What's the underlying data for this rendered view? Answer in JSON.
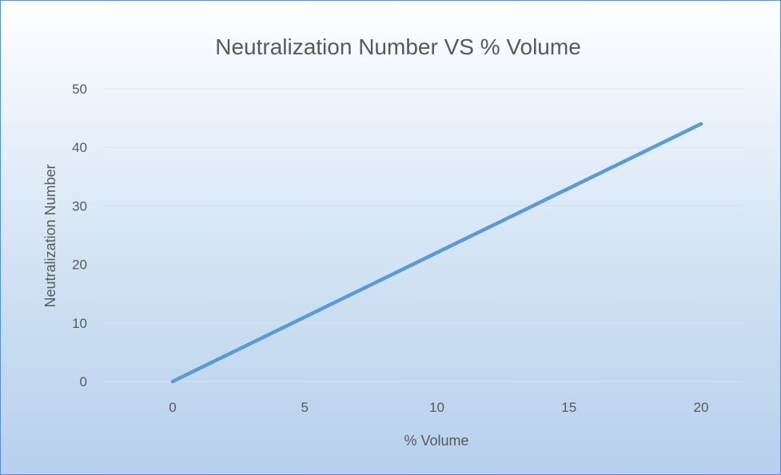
{
  "chart_data": {
    "type": "line",
    "title": "Neutralization Number VS % Volume",
    "xlabel": "% Volume",
    "ylabel": "Neutralization Number",
    "x": [
      0,
      5,
      10,
      15,
      20
    ],
    "series": [
      {
        "values": [
          0,
          11,
          22,
          33,
          44
        ],
        "color": "#5b9bd5"
      }
    ],
    "xlim": [
      0,
      20
    ],
    "ylim": [
      0,
      50
    ],
    "x_ticks": [
      "0",
      "5",
      "10",
      "15",
      "20"
    ],
    "y_ticks": [
      "0",
      "10",
      "20",
      "30",
      "40",
      "50"
    ],
    "grid": "horizontal",
    "legend": "none"
  }
}
